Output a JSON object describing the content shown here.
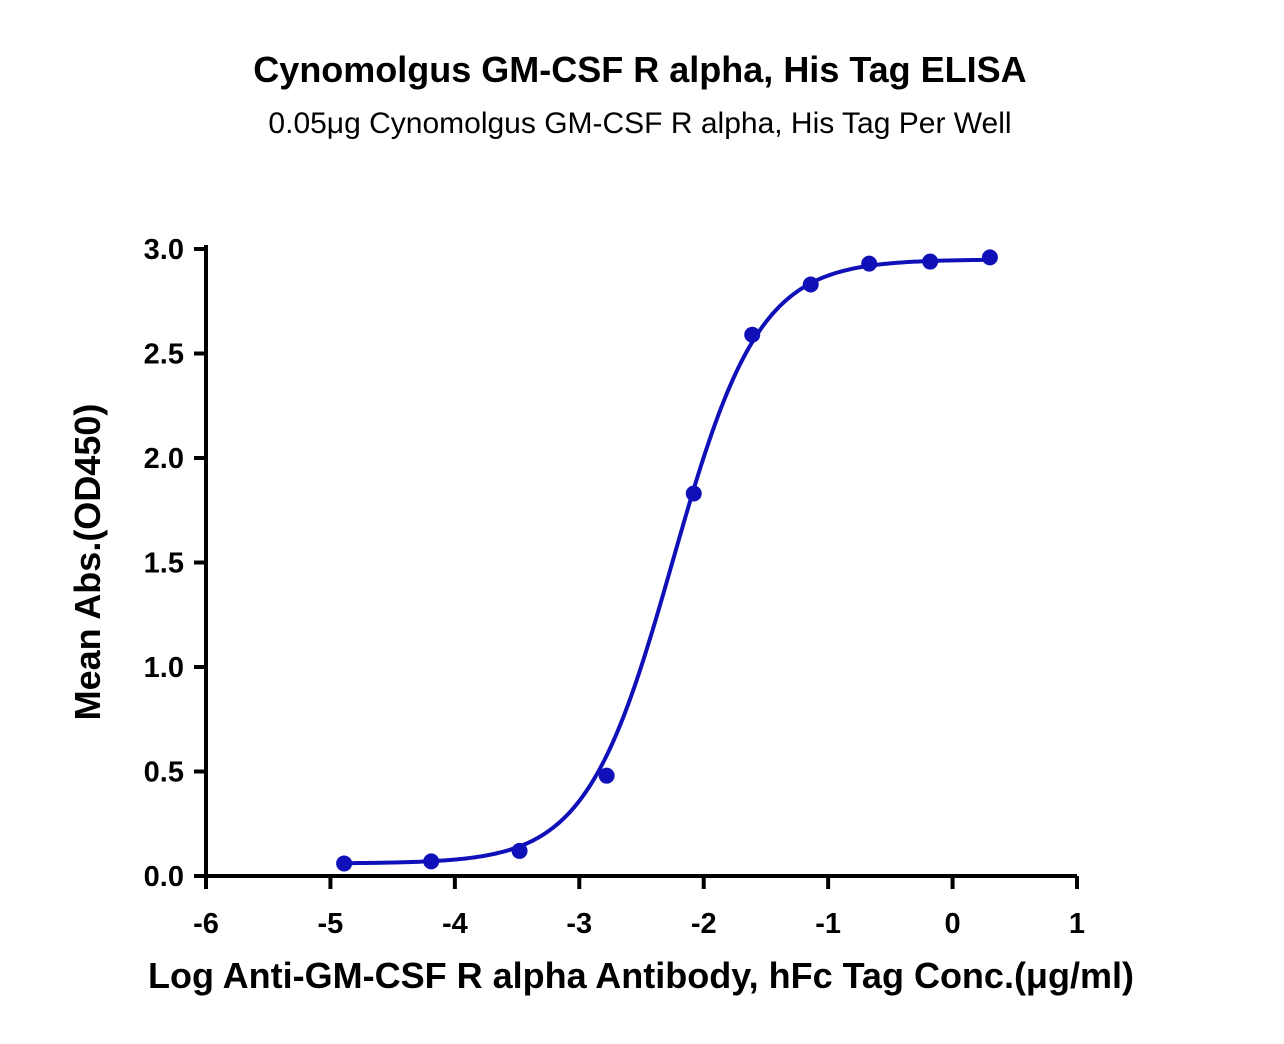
{
  "chart_data": {
    "type": "scatter",
    "title": "Cynomolgus GM-CSF R alpha, His Tag ELISA",
    "subtitle": "0.05μg Cynomolgus GM-CSF R alpha, His Tag Per Well",
    "xlabel": "Log Anti-GM-CSF R alpha Antibody, hFc Tag Conc.(μg/ml)",
    "ylabel": "Mean Abs.(OD450)",
    "xlim": [
      -6,
      1
    ],
    "ylim": [
      0,
      3
    ],
    "x_ticks": [
      -6,
      -5,
      -4,
      -3,
      -2,
      -1,
      0,
      1
    ],
    "x_tick_labels": [
      "-6",
      "-5",
      "-4",
      "-3",
      "-2",
      "-1",
      "0",
      "1"
    ],
    "y_ticks": [
      0,
      0.5,
      1,
      1.5,
      2,
      2.5,
      3
    ],
    "y_tick_labels": [
      "0.0",
      "0.5",
      "1.0",
      "1.5",
      "2.0",
      "2.5",
      "3.0"
    ],
    "grid": false,
    "series": [
      {
        "color": "#1010b8",
        "x": [
          -4.89,
          -4.19,
          -3.48,
          -2.78,
          -2.08,
          -1.61,
          -1.14,
          -0.67,
          -0.18,
          0.3
        ],
        "y": [
          0.06,
          0.07,
          0.12,
          0.48,
          1.83,
          2.59,
          2.83,
          2.93,
          2.94,
          2.96
        ]
      }
    ],
    "fit": {
      "type": "4PL",
      "bottom": 0.06,
      "top": 2.95,
      "log_ec50": -2.25,
      "hill_slope": 1.25,
      "x_range": [
        -4.89,
        0.3
      ]
    }
  }
}
